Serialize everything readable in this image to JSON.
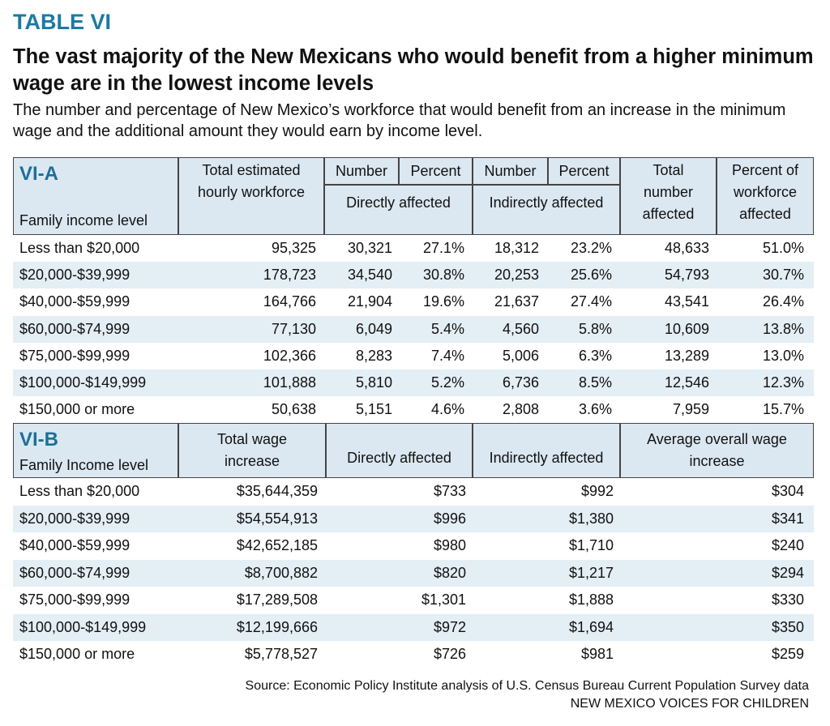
{
  "header": {
    "label": "TABLE VI",
    "title": "The vast majority of the New Mexicans who would benefit from a higher minimum wage are in the lowest income levels",
    "subtitle": "The number and percentage of New Mexico’s workforce that would benefit from an increase in the minimum wage and the additional amount they would earn by income level."
  },
  "table_a": {
    "section": "VI-A",
    "headers": {
      "family": "Family income level",
      "workforce": "Total estimated hourly workforce",
      "direct_number": "Number",
      "direct_percent": "Percent",
      "indirect_number": "Number",
      "indirect_percent": "Percent",
      "direct_group": "Directly affected",
      "indirect_group": "Indirectly affected",
      "total": "Total number affected",
      "percent_workforce": "Percent of workforce affected"
    },
    "rows": [
      [
        "Less than $20,000",
        "95,325",
        "30,321",
        "27.1%",
        "18,312",
        "23.2%",
        "48,633",
        "51.0%"
      ],
      [
        "$20,000-$39,999",
        "178,723",
        "34,540",
        "30.8%",
        "20,253",
        "25.6%",
        "54,793",
        "30.7%"
      ],
      [
        "$40,000-$59,999",
        "164,766",
        "21,904",
        "19.6%",
        "21,637",
        "27.4%",
        "43,541",
        "26.4%"
      ],
      [
        "$60,000-$74,999",
        "77,130",
        "6,049",
        "5.4%",
        "4,560",
        "5.8%",
        "10,609",
        "13.8%"
      ],
      [
        "$75,000-$99,999",
        "102,366",
        "8,283",
        "7.4%",
        "5,006",
        "6.3%",
        "13,289",
        "13.0%"
      ],
      [
        "$100,000-$149,999",
        "101,888",
        "5,810",
        "5.2%",
        "6,736",
        "8.5%",
        "12,546",
        "12.3%"
      ],
      [
        "$150,000 or more",
        "50,638",
        "5,151",
        "4.6%",
        "2,808",
        "3.6%",
        "7,959",
        "15.7%"
      ]
    ]
  },
  "table_b": {
    "section": "VI-B",
    "headers": {
      "family": "Family Income level",
      "total_wage": "Total wage increase",
      "direct": "Directly affected",
      "indirect": "Indirectly affected",
      "average": "Average overall wage increase"
    },
    "rows": [
      [
        "Less than $20,000",
        "$35,644,359",
        "$733",
        "$992",
        "$304"
      ],
      [
        "$20,000-$39,999",
        "$54,554,913",
        "$996",
        "$1,380",
        "$341"
      ],
      [
        "$40,000-$59,999",
        "$42,652,185",
        "$980",
        "$1,710",
        "$240"
      ],
      [
        "$60,000-$74,999",
        "$8,700,882",
        "$820",
        "$1,217",
        "$294"
      ],
      [
        "$75,000-$99,999",
        "$17,289,508",
        "$1,301",
        "$1,888",
        "$330"
      ],
      [
        "$100,000-$149,999",
        "$12,199,666",
        "$972",
        "$1,694",
        "$350"
      ],
      [
        "$150,000 or more",
        "$5,778,527",
        "$726",
        "$981",
        "$259"
      ]
    ]
  },
  "footer": {
    "source": "Source: Economic Policy Institute analysis of U.S. Census Bureau Current Population Survey data",
    "org": "NEW MEXICO VOICES FOR CHILDREN"
  }
}
